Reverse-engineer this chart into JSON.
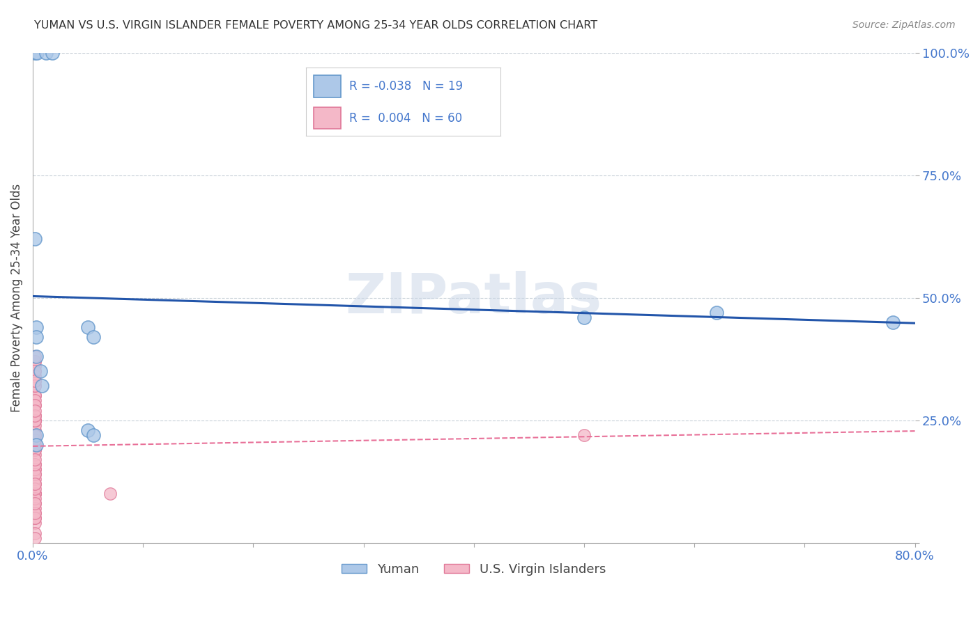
{
  "title": "YUMAN VS U.S. VIRGIN ISLANDER FEMALE POVERTY AMONG 25-34 YEAR OLDS CORRELATION CHART",
  "source": "Source: ZipAtlas.com",
  "ylabel": "Female Poverty Among 25-34 Year Olds",
  "xlim": [
    0.0,
    0.8
  ],
  "ylim": [
    0.0,
    1.0
  ],
  "background_color": "#ffffff",
  "grid_color": "#c8d0d8",
  "watermark_text": "ZIPatlas",
  "yuman_fill": "#adc8e8",
  "yuman_edge": "#6699cc",
  "virgin_fill": "#f4b8c8",
  "virgin_edge": "#e07898",
  "trend_yuman_color": "#2255aa",
  "trend_virgin_color": "#e87098",
  "legend_R_yuman": "-0.038",
  "legend_N_yuman": "19",
  "legend_R_virgin": "0.004",
  "legend_N_virgin": "60",
  "legend_label_yuman": "Yuman",
  "legend_label_virgin": "U.S. Virgin Islanders",
  "title_color": "#333333",
  "axis_label_color": "#444444",
  "tick_label_color": "#4477cc",
  "yuman_points_x": [
    0.002,
    0.004,
    0.012,
    0.018,
    0.002,
    0.003,
    0.003,
    0.003,
    0.003,
    0.003,
    0.007,
    0.008,
    0.05,
    0.055,
    0.05,
    0.055,
    0.5,
    0.62,
    0.78
  ],
  "yuman_points_y": [
    1.0,
    1.0,
    1.0,
    1.0,
    0.62,
    0.44,
    0.42,
    0.38,
    0.22,
    0.2,
    0.35,
    0.32,
    0.44,
    0.42,
    0.23,
    0.22,
    0.46,
    0.47,
    0.45
  ],
  "virgin_points_x": [
    0.002,
    0.002,
    0.002,
    0.002,
    0.002,
    0.002,
    0.002,
    0.002,
    0.002,
    0.002,
    0.002,
    0.002,
    0.002,
    0.002,
    0.002,
    0.002,
    0.002,
    0.002,
    0.002,
    0.002,
    0.002,
    0.002,
    0.002,
    0.002,
    0.002,
    0.002,
    0.002,
    0.002,
    0.002,
    0.002,
    0.002,
    0.002,
    0.002,
    0.002,
    0.002,
    0.002,
    0.002,
    0.002,
    0.002,
    0.002,
    0.002,
    0.002,
    0.002,
    0.002,
    0.002,
    0.002,
    0.002,
    0.002,
    0.002,
    0.002,
    0.002,
    0.002,
    0.002,
    0.002,
    0.002,
    0.002,
    0.002,
    0.002,
    0.5,
    0.07
  ],
  "virgin_points_y": [
    0.37,
    0.35,
    0.33,
    0.3,
    0.28,
    0.25,
    0.23,
    0.21,
    0.19,
    0.16,
    0.14,
    0.12,
    0.1,
    0.08,
    0.06,
    0.04,
    0.02,
    0.36,
    0.3,
    0.24,
    0.18,
    0.13,
    0.07,
    0.01,
    0.37,
    0.32,
    0.26,
    0.21,
    0.15,
    0.1,
    0.05,
    0.38,
    0.34,
    0.29,
    0.25,
    0.2,
    0.15,
    0.1,
    0.05,
    0.32,
    0.25,
    0.19,
    0.14,
    0.09,
    0.35,
    0.28,
    0.22,
    0.16,
    0.11,
    0.06,
    0.33,
    0.26,
    0.21,
    0.27,
    0.22,
    0.17,
    0.12,
    0.08,
    0.22,
    0.1
  ],
  "trend_yuman_x0": 0.0,
  "trend_yuman_y0": 0.503,
  "trend_yuman_x1": 0.8,
  "trend_yuman_y1": 0.448,
  "trend_virgin_x0": 0.0,
  "trend_virgin_y0": 0.197,
  "trend_virgin_x1": 0.8,
  "trend_virgin_y1": 0.228
}
